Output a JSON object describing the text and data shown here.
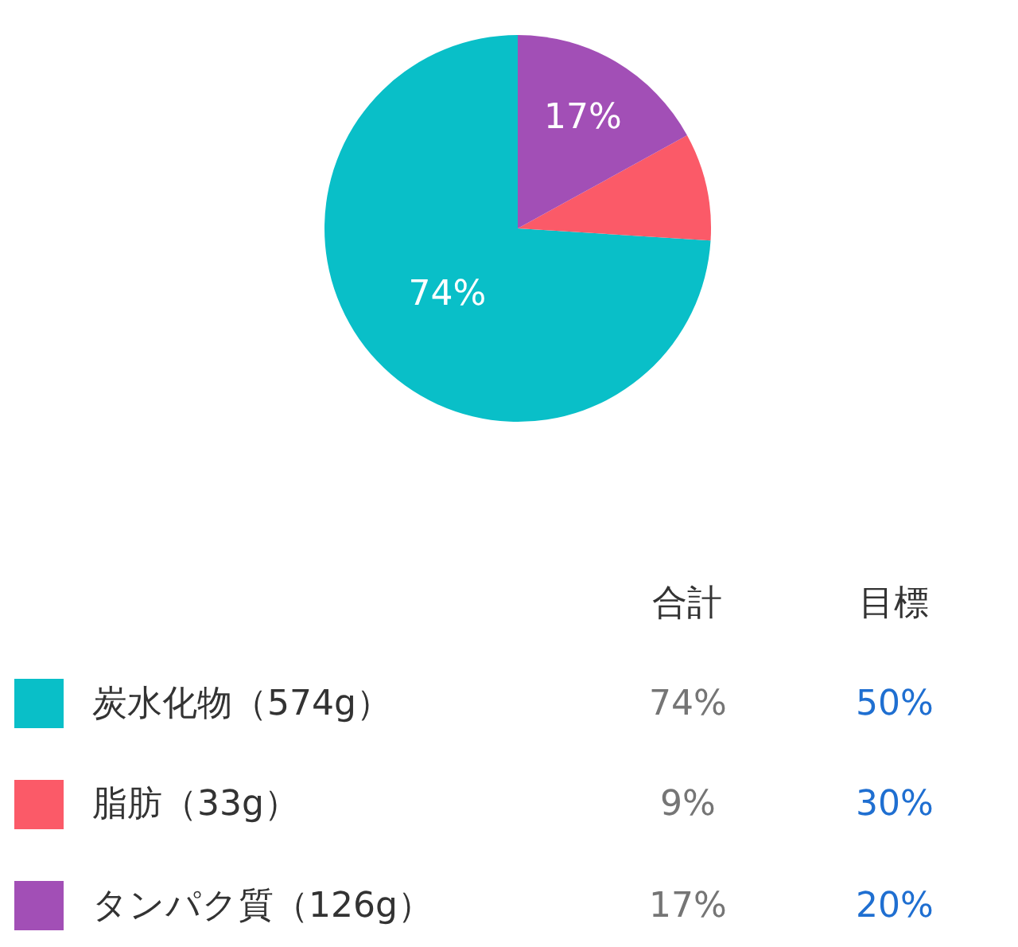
{
  "chart_data": {
    "type": "pie",
    "categories": [
      "炭水化物（574g）",
      "脂肪（33g）",
      "タンパク質（126g）"
    ],
    "values": [
      74,
      9,
      17
    ],
    "colors": [
      "#09bfc8",
      "#fb5a68",
      "#a24fb6"
    ],
    "value_labels": [
      "74%",
      null,
      "17%"
    ],
    "legend": "bottom",
    "annotations": [
      "合計",
      "74%",
      "9%",
      "17%",
      "目標",
      "50%",
      "30%",
      "20%"
    ]
  }
}
